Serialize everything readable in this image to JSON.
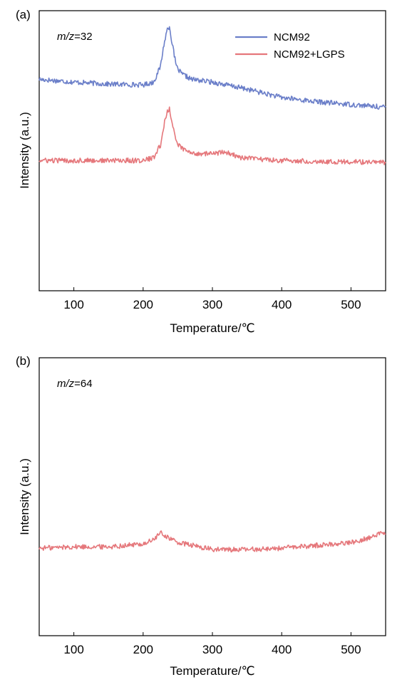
{
  "chart_data": [
    {
      "type": "line",
      "panel_label": "(a)",
      "annotation": {
        "italic": "m/z",
        "rest": "=32"
      },
      "xlabel": "Temperature/℃",
      "ylabel": "Intensity (a.u.)",
      "xlim": [
        50,
        550
      ],
      "x_ticks": [
        100,
        200,
        300,
        400,
        500
      ],
      "y_ticks_labeled": false,
      "grid": false,
      "legend_position": "top-right",
      "series": [
        {
          "name": "NCM92",
          "color": "#6b7fc9",
          "x": [
            50,
            100,
            150,
            200,
            215,
            225,
            230,
            235,
            238,
            242,
            248,
            255,
            270,
            300,
            350,
            400,
            450,
            500,
            550
          ],
          "y": [
            0.755,
            0.745,
            0.738,
            0.735,
            0.745,
            0.8,
            0.88,
            0.935,
            0.945,
            0.88,
            0.8,
            0.775,
            0.755,
            0.745,
            0.72,
            0.69,
            0.675,
            0.665,
            0.655
          ]
        },
        {
          "name": "NCM92+LGPS",
          "color": "#e5777b",
          "x": [
            50,
            100,
            150,
            200,
            215,
            225,
            230,
            235,
            238,
            242,
            248,
            255,
            270,
            300,
            320,
            340,
            400,
            450,
            500,
            550
          ],
          "y": [
            0.465,
            0.465,
            0.465,
            0.465,
            0.475,
            0.52,
            0.59,
            0.64,
            0.65,
            0.6,
            0.53,
            0.51,
            0.49,
            0.49,
            0.495,
            0.475,
            0.465,
            0.462,
            0.46,
            0.458
          ]
        }
      ]
    },
    {
      "type": "line",
      "panel_label": "(b)",
      "annotation": {
        "italic": "m/z",
        "rest": "=64"
      },
      "xlabel": "Temperature/℃",
      "ylabel": "Intensity (a.u.)",
      "xlim": [
        50,
        550
      ],
      "x_ticks": [
        100,
        200,
        300,
        400,
        500
      ],
      "y_ticks_labeled": false,
      "grid": false,
      "series": [
        {
          "color": "#e5777b",
          "x": [
            50,
            100,
            150,
            200,
            215,
            225,
            235,
            250,
            300,
            350,
            400,
            450,
            500,
            530,
            550
          ],
          "y": [
            0.315,
            0.32,
            0.32,
            0.33,
            0.345,
            0.37,
            0.355,
            0.335,
            0.31,
            0.31,
            0.315,
            0.325,
            0.335,
            0.355,
            0.375
          ]
        }
      ]
    }
  ]
}
